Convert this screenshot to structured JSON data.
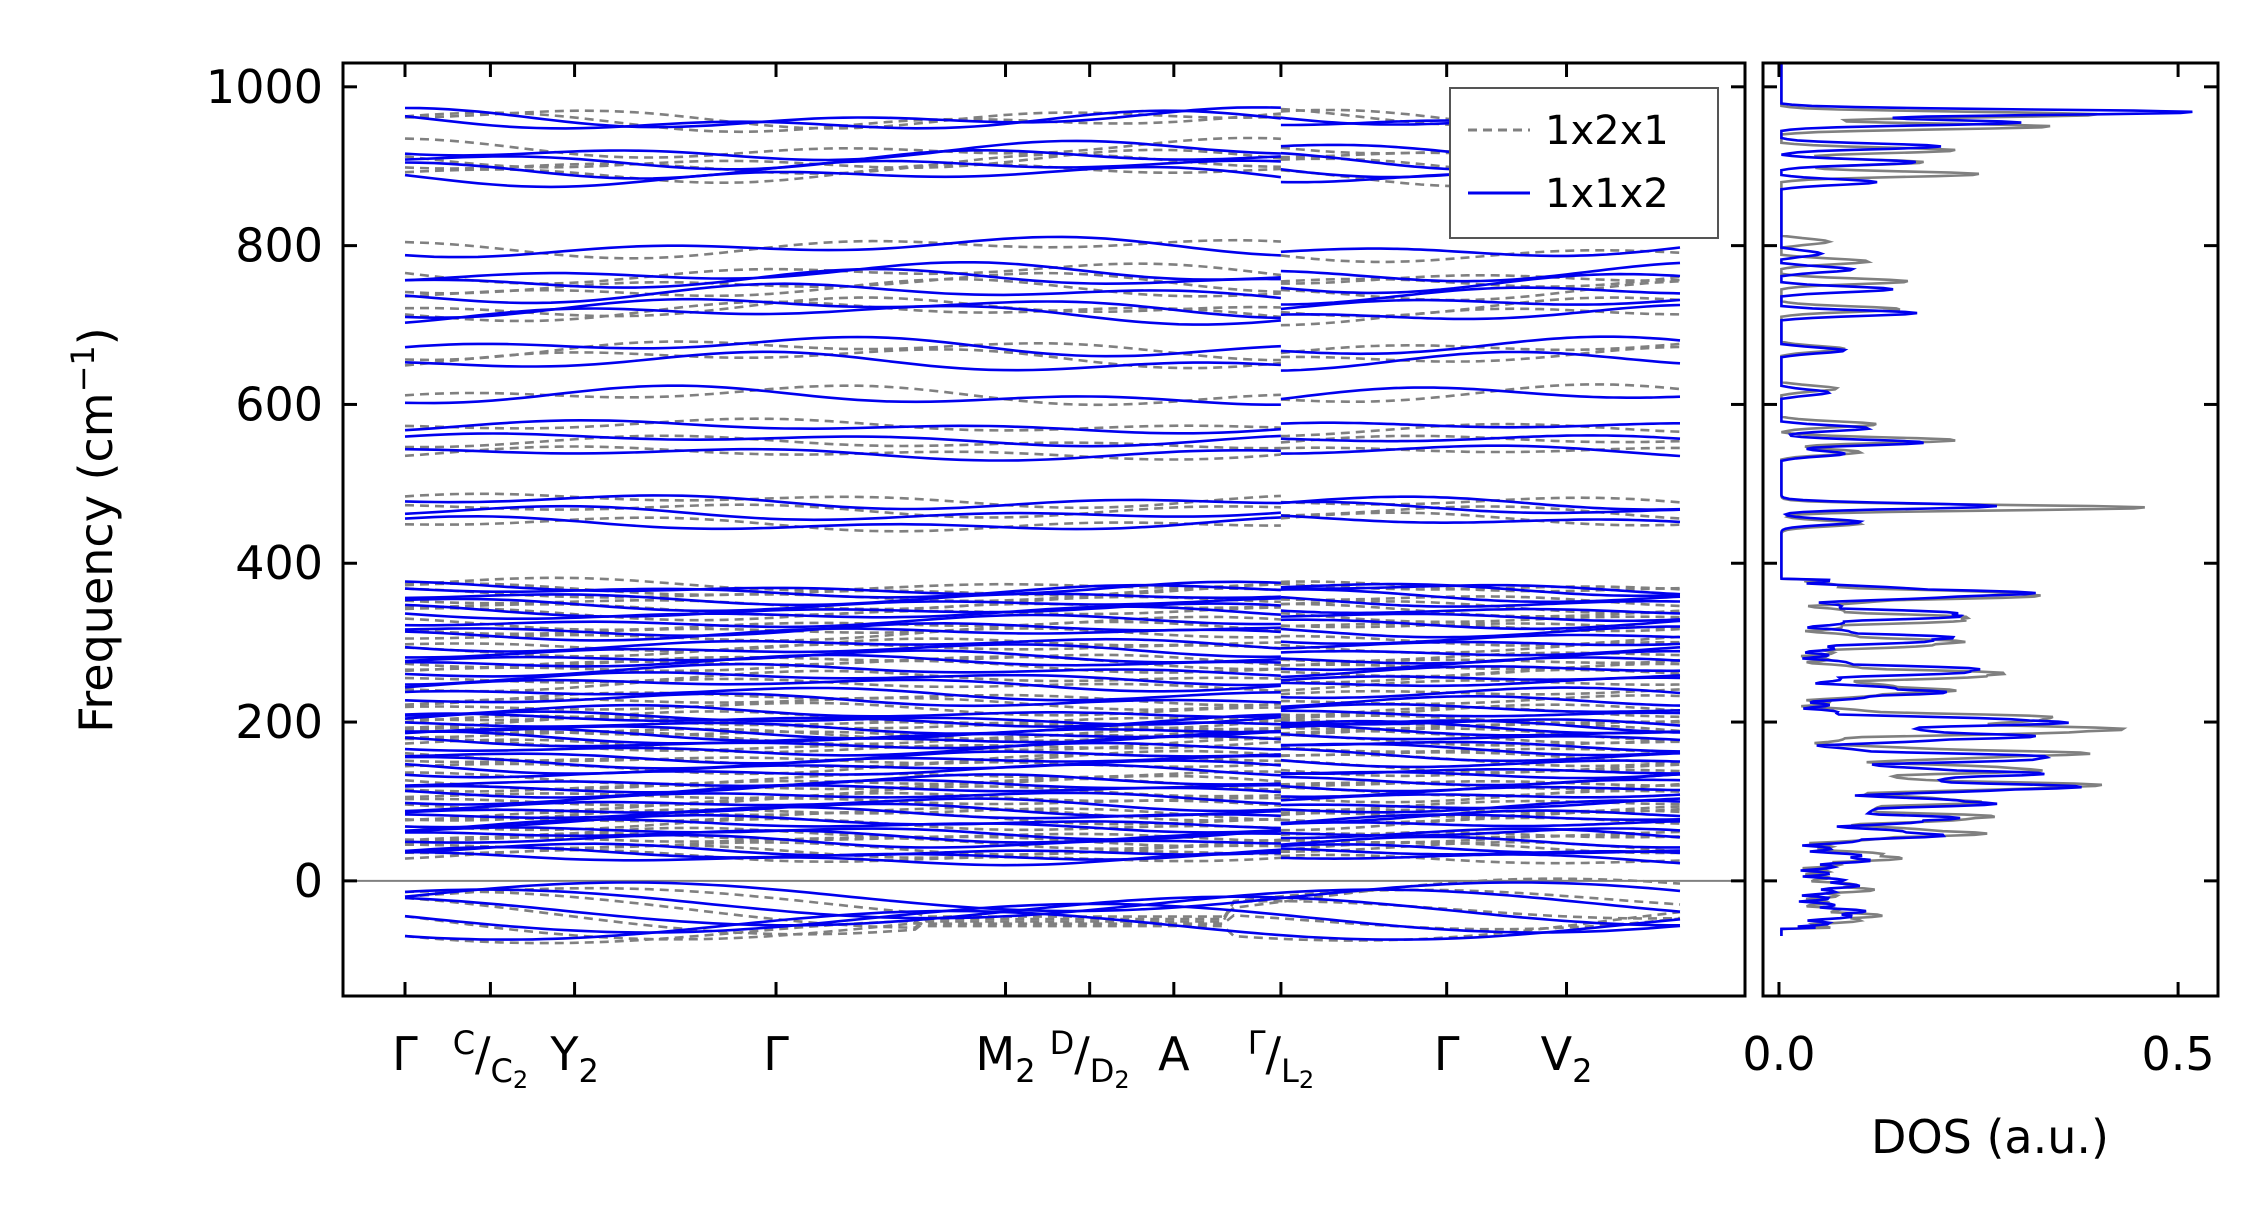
{
  "chart_data": [
    {
      "type": "line",
      "panel": "band-structure",
      "ylabel": "Frequency (cm",
      "ylabel_sup": "−1",
      "ylabel_close": ")",
      "ylim": [
        -145,
        1030
      ],
      "yticks": [
        0,
        200,
        400,
        600,
        800,
        1000
      ],
      "zero_line": true,
      "xticks": [
        {
          "id": "gamma1",
          "pos": 0.0,
          "parts": [
            {
              "t": "Γ"
            }
          ]
        },
        {
          "id": "c-c2",
          "pos": 0.067,
          "parts": [
            {
              "t": "C",
              "s": "sup"
            },
            {
              "t": "/"
            },
            {
              "t": "C",
              "s": "sub"
            },
            {
              "t": "2",
              "s": "subsub"
            }
          ]
        },
        {
          "id": "y2",
          "pos": 0.133,
          "parts": [
            {
              "t": "Y"
            },
            {
              "t": "2",
              "s": "sub"
            }
          ]
        },
        {
          "id": "gamma2",
          "pos": 0.291,
          "parts": [
            {
              "t": "Γ"
            }
          ]
        },
        {
          "id": "m2",
          "pos": 0.471,
          "parts": [
            {
              "t": "M"
            },
            {
              "t": "2",
              "s": "sub"
            }
          ]
        },
        {
          "id": "d-d2",
          "pos": 0.537,
          "parts": [
            {
              "t": "D",
              "s": "sup"
            },
            {
              "t": "/"
            },
            {
              "t": "D",
              "s": "sub"
            },
            {
              "t": "2",
              "s": "subsub"
            }
          ]
        },
        {
          "id": "a",
          "pos": 0.603,
          "parts": [
            {
              "t": "A"
            }
          ]
        },
        {
          "id": "gamma-l2",
          "pos": 0.687,
          "parts": [
            {
              "t": "Γ",
              "s": "sup"
            },
            {
              "t": "/"
            },
            {
              "t": "L",
              "s": "sub"
            },
            {
              "t": "2",
              "s": "subsub"
            }
          ]
        },
        {
          "id": "gamma3",
          "pos": 0.817,
          "parts": [
            {
              "t": "Γ"
            }
          ]
        },
        {
          "id": "v2",
          "pos": 0.911,
          "parts": [
            {
              "t": "V"
            },
            {
              "t": "2",
              "s": "sub"
            }
          ]
        }
      ],
      "path_discontinuity_at": 0.687,
      "legend": {
        "placement": "top-right",
        "entries": [
          "1x2x1",
          "1x1x2"
        ]
      },
      "series": [
        {
          "name": "1x2x1",
          "color": "#808080",
          "dashed": true
        },
        {
          "name": "1x1x2",
          "color": "#0000ee",
          "dashed": false
        }
      ],
      "band_levels": [
        960,
        955,
        920,
        910,
        900,
        890,
        795,
        765,
        755,
        740,
        725,
        715,
        672,
        655,
        612,
        570,
        555,
        540,
        475,
        465,
        450,
        370,
        365,
        358,
        350,
        342,
        335,
        325,
        318,
        310,
        300,
        290,
        280,
        275,
        265,
        255,
        245,
        235,
        225,
        215,
        205,
        200,
        195,
        190,
        185,
        178,
        172,
        165,
        158,
        150,
        143,
        135,
        128,
        120,
        112,
        105,
        98,
        90,
        82,
        75,
        68,
        60,
        55,
        48,
        40,
        35,
        28
      ]
    },
    {
      "type": "line",
      "panel": "density-of-states",
      "xlabel": "DOS (a.u.)",
      "xlim": [
        -0.02,
        0.55
      ],
      "xticks": [
        0.0,
        0.5
      ],
      "xtick_labels": [
        "0.0",
        "0.5"
      ],
      "ylim": [
        -145,
        1030
      ],
      "series": [
        {
          "name": "1x2x1",
          "color": "#808080",
          "peaks": [
            [
              965,
              0.4
            ],
            [
              950,
              0.34
            ],
            [
              920,
              0.22
            ],
            [
              905,
              0.18
            ],
            [
              890,
              0.25
            ],
            [
              805,
              0.06
            ],
            [
              780,
              0.11
            ],
            [
              755,
              0.16
            ],
            [
              720,
              0.15
            ],
            [
              670,
              0.08
            ],
            [
              620,
              0.07
            ],
            [
              575,
              0.12
            ],
            [
              555,
              0.22
            ],
            [
              540,
              0.1
            ],
            [
              470,
              0.46
            ],
            [
              450,
              0.1
            ],
            [
              360,
              0.28
            ],
            [
              330,
              0.2
            ],
            [
              300,
              0.18
            ],
            [
              260,
              0.24
            ],
            [
              240,
              0.16
            ],
            [
              205,
              0.3
            ],
            [
              190,
              0.38
            ],
            [
              160,
              0.33
            ],
            [
              140,
              0.28
            ],
            [
              120,
              0.35
            ],
            [
              100,
              0.2
            ],
            [
              80,
              0.22
            ],
            [
              60,
              0.2
            ],
            [
              30,
              0.1
            ],
            [
              -10,
              0.06
            ],
            [
              -45,
              0.07
            ]
          ]
        },
        {
          "name": "1x1x2",
          "color": "#0000ee",
          "peaks": [
            [
              968,
              0.52
            ],
            [
              955,
              0.3
            ],
            [
              925,
              0.2
            ],
            [
              905,
              0.17
            ],
            [
              880,
              0.12
            ],
            [
              790,
              0.05
            ],
            [
              770,
              0.09
            ],
            [
              745,
              0.14
            ],
            [
              715,
              0.17
            ],
            [
              668,
              0.08
            ],
            [
              615,
              0.06
            ],
            [
              570,
              0.11
            ],
            [
              552,
              0.18
            ],
            [
              538,
              0.08
            ],
            [
              472,
              0.27
            ],
            [
              452,
              0.1
            ],
            [
              362,
              0.26
            ],
            [
              335,
              0.19
            ],
            [
              305,
              0.17
            ],
            [
              265,
              0.21
            ],
            [
              238,
              0.15
            ],
            [
              200,
              0.31
            ],
            [
              182,
              0.26
            ],
            [
              155,
              0.3
            ],
            [
              135,
              0.27
            ],
            [
              118,
              0.32
            ],
            [
              98,
              0.22
            ],
            [
              78,
              0.17
            ],
            [
              58,
              0.15
            ],
            [
              28,
              0.06
            ],
            [
              -5,
              0.04
            ],
            [
              -40,
              0.05
            ]
          ]
        }
      ]
    }
  ]
}
